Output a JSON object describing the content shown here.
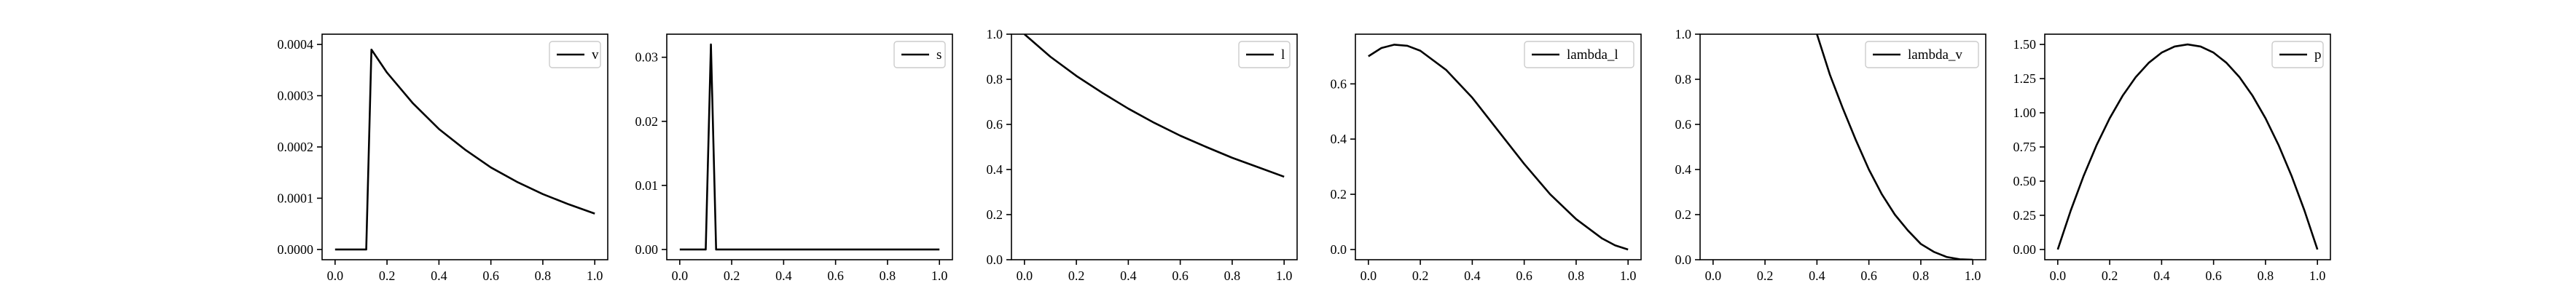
{
  "chart_data": [
    {
      "type": "line",
      "legend": "top-right",
      "grid": false,
      "xlim": [
        -0.05,
        1.05
      ],
      "ylim": [
        -2e-05,
        0.00042
      ],
      "xticks": [
        0.0,
        0.2,
        0.4,
        0.6,
        0.8,
        1.0
      ],
      "yticks": [
        0.0,
        0.0001,
        0.0002,
        0.0003,
        0.0004
      ],
      "xtick_labels": [
        "0.0",
        "0.2",
        "0.4",
        "0.6",
        "0.8",
        "1.0"
      ],
      "ytick_labels": [
        "0.0000",
        "0.0001",
        "0.0002",
        "0.0003",
        "0.0004"
      ],
      "series": [
        {
          "name": "v",
          "x": [
            0.0,
            0.05,
            0.1,
            0.12,
            0.14,
            0.2,
            0.3,
            0.4,
            0.5,
            0.6,
            0.7,
            0.8,
            0.9,
            1.0
          ],
          "y": [
            0.0,
            0.0,
            0.0,
            0.0,
            0.00039,
            0.000345,
            0.000285,
            0.000235,
            0.000195,
            0.00016,
            0.000132,
            0.000108,
            8.8e-05,
            7e-05
          ]
        }
      ]
    },
    {
      "type": "line",
      "legend": "top-right",
      "grid": false,
      "xlim": [
        -0.05,
        1.05
      ],
      "ylim": [
        -0.0016,
        0.0336
      ],
      "xticks": [
        0.0,
        0.2,
        0.4,
        0.6,
        0.8,
        1.0
      ],
      "yticks": [
        0.0,
        0.01,
        0.02,
        0.03
      ],
      "xtick_labels": [
        "0.0",
        "0.2",
        "0.4",
        "0.6",
        "0.8",
        "1.0"
      ],
      "ytick_labels": [
        "0.00",
        "0.01",
        "0.02",
        "0.03"
      ],
      "series": [
        {
          "name": "s",
          "x": [
            0.0,
            0.1,
            0.12,
            0.14,
            0.2,
            0.4,
            0.6,
            0.8,
            1.0
          ],
          "y": [
            0.0,
            0.0,
            0.032,
            0.0,
            0.0,
            0.0,
            0.0,
            0.0,
            0.0
          ]
        }
      ]
    },
    {
      "type": "line",
      "legend": "top-right",
      "grid": false,
      "xlim": [
        -0.05,
        1.05
      ],
      "ylim": [
        0.0,
        1.0
      ],
      "xticks": [
        0.0,
        0.2,
        0.4,
        0.6,
        0.8,
        1.0
      ],
      "yticks": [
        0.0,
        0.2,
        0.4,
        0.6,
        0.8,
        1.0
      ],
      "xtick_labels": [
        "0.0",
        "0.2",
        "0.4",
        "0.6",
        "0.8",
        "1.0"
      ],
      "ytick_labels": [
        "0.0",
        "0.2",
        "0.4",
        "0.6",
        "0.8",
        "1.0"
      ],
      "series": [
        {
          "name": "l",
          "x": [
            0.0,
            0.1,
            0.2,
            0.3,
            0.4,
            0.5,
            0.6,
            0.7,
            0.8,
            0.9,
            1.0
          ],
          "y": [
            1.0,
            0.9,
            0.815,
            0.74,
            0.67,
            0.607,
            0.55,
            0.5,
            0.452,
            0.41,
            0.368
          ]
        }
      ]
    },
    {
      "type": "line",
      "legend": "top-right",
      "grid": false,
      "xlim": [
        -0.05,
        1.05
      ],
      "ylim": [
        -0.037,
        0.78
      ],
      "xticks": [
        0.0,
        0.2,
        0.4,
        0.6,
        0.8,
        1.0
      ],
      "yticks": [
        0.0,
        0.2,
        0.4,
        0.6
      ],
      "xtick_labels": [
        "0.0",
        "0.2",
        "0.4",
        "0.6",
        "0.8",
        "1.0"
      ],
      "ytick_labels": [
        "0.0",
        "0.2",
        "0.4",
        "0.6"
      ],
      "series": [
        {
          "name": "lambda_l",
          "x": [
            0.0,
            0.05,
            0.1,
            0.15,
            0.2,
            0.3,
            0.4,
            0.5,
            0.6,
            0.7,
            0.8,
            0.9,
            0.95,
            1.0
          ],
          "y": [
            0.7,
            0.73,
            0.742,
            0.738,
            0.72,
            0.65,
            0.55,
            0.43,
            0.31,
            0.2,
            0.11,
            0.04,
            0.015,
            0.0
          ]
        }
      ]
    },
    {
      "type": "line",
      "legend": "top-right",
      "grid": false,
      "xlim": [
        -0.05,
        1.05
      ],
      "ylim": [
        0.0,
        1.0
      ],
      "xticks": [
        0.0,
        0.2,
        0.4,
        0.6,
        0.8,
        1.0
      ],
      "yticks": [
        0.0,
        0.2,
        0.4,
        0.6,
        0.8,
        1.0
      ],
      "xtick_labels": [
        "0.0",
        "0.2",
        "0.4",
        "0.6",
        "0.8",
        "1.0"
      ],
      "ytick_labels": [
        "0.0",
        "0.2",
        "0.4",
        "0.6",
        "0.8",
        "1.0"
      ],
      "series": [
        {
          "name": "lambda_v",
          "x": [
            0.4,
            0.45,
            0.5,
            0.55,
            0.6,
            0.65,
            0.7,
            0.75,
            0.8,
            0.85,
            0.9,
            0.95,
            1.0
          ],
          "y": [
            1.0,
            0.82,
            0.67,
            0.53,
            0.4,
            0.29,
            0.2,
            0.13,
            0.07,
            0.035,
            0.012,
            0.002,
            0.0
          ]
        }
      ]
    },
    {
      "type": "line",
      "legend": "top-right",
      "grid": false,
      "xlim": [
        -0.05,
        1.05
      ],
      "ylim": [
        -0.075,
        1.575
      ],
      "xticks": [
        0.0,
        0.2,
        0.4,
        0.6,
        0.8,
        1.0
      ],
      "yticks": [
        0.0,
        0.25,
        0.5,
        0.75,
        1.0,
        1.25,
        1.5
      ],
      "xtick_labels": [
        "0.0",
        "0.2",
        "0.4",
        "0.6",
        "0.8",
        "1.0"
      ],
      "ytick_labels": [
        "0.00",
        "0.25",
        "0.50",
        "0.75",
        "1.00",
        "1.25",
        "1.50"
      ],
      "series": [
        {
          "name": "p",
          "x": [
            0.0,
            0.05,
            0.1,
            0.15,
            0.2,
            0.25,
            0.3,
            0.35,
            0.4,
            0.45,
            0.5,
            0.55,
            0.6,
            0.65,
            0.7,
            0.75,
            0.8,
            0.85,
            0.9,
            0.95,
            1.0
          ],
          "y": [
            0.0,
            0.285,
            0.54,
            0.765,
            0.96,
            1.125,
            1.26,
            1.365,
            1.44,
            1.485,
            1.5,
            1.485,
            1.44,
            1.365,
            1.26,
            1.125,
            0.96,
            0.765,
            0.54,
            0.285,
            0.0
          ]
        }
      ]
    }
  ]
}
